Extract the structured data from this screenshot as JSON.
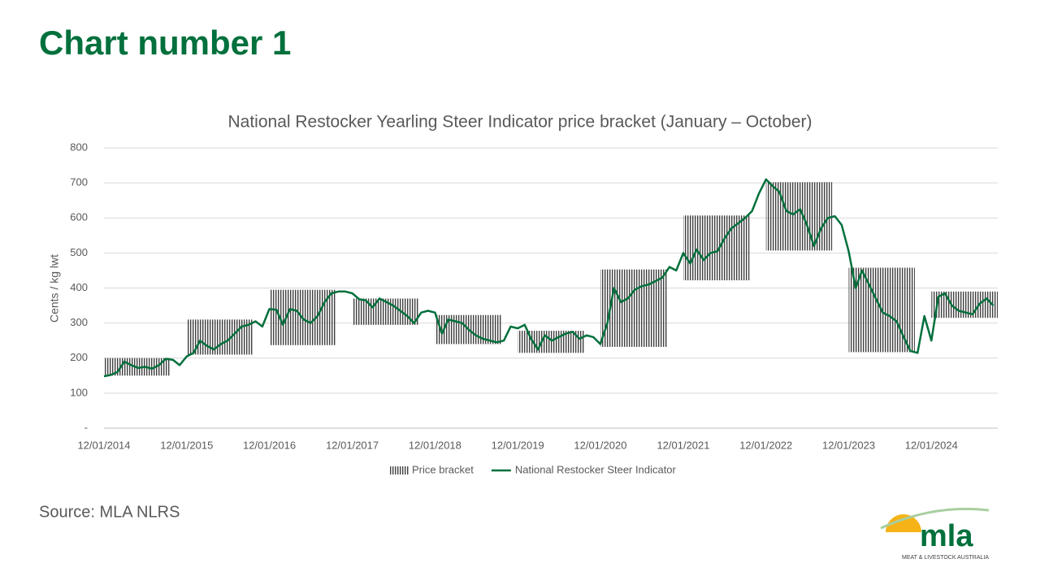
{
  "page_title": "Chart number 1",
  "source": "Source: MLA NLRS",
  "logo": {
    "name": "mla",
    "tagline": "MEAT & LIVESTOCK AUSTRALIA"
  },
  "chart_data": {
    "type": "range_line",
    "title": "National Restocker Yearling Steer Indicator price bracket (January – October)",
    "y_label": "Cents / kg lwt",
    "ylim": [
      0,
      800
    ],
    "yticks": [
      {
        "value": 0,
        "label": "-"
      },
      100,
      200,
      300,
      400,
      500,
      600,
      700,
      800
    ],
    "xlim": [
      "2014-01-12",
      "2024-10-31"
    ],
    "xticks": [
      {
        "value": "2014-01-12",
        "label": "12/01/2014"
      },
      {
        "value": "2015-01-12",
        "label": "12/01/2015"
      },
      {
        "value": "2016-01-12",
        "label": "12/01/2016"
      },
      {
        "value": "2017-01-12",
        "label": "12/01/2017"
      },
      {
        "value": "2018-01-12",
        "label": "12/01/2018"
      },
      {
        "value": "2019-01-12",
        "label": "12/01/2019"
      },
      {
        "value": "2020-01-12",
        "label": "12/01/2020"
      },
      {
        "value": "2021-01-12",
        "label": "12/01/2021"
      },
      {
        "value": "2022-01-12",
        "label": "12/01/2022"
      },
      {
        "value": "2023-01-12",
        "label": "12/01/2023"
      },
      {
        "value": "2024-01-12",
        "label": "12/01/2024"
      }
    ],
    "grid": true,
    "legend": "bottom",
    "series": [
      {
        "name": "Price bracket",
        "type": "range",
        "color": "#404040",
        "x_start": [
          "2014-01-12",
          "2015-01-12",
          "2016-01-12",
          "2017-01-12",
          "2018-01-12",
          "2019-01-12",
          "2020-01-12",
          "2021-01-12",
          "2022-01-12",
          "2023-01-12",
          "2024-01-12"
        ],
        "x_end": [
          "2014-10-31",
          "2015-10-31",
          "2016-10-31",
          "2017-10-31",
          "2018-10-31",
          "2019-10-31",
          "2020-10-31",
          "2021-10-31",
          "2022-10-31",
          "2023-10-31",
          "2024-10-31"
        ],
        "low": [
          150,
          210,
          237,
          295,
          240,
          215,
          232,
          422,
          507,
          217,
          315
        ],
        "high": [
          200,
          310,
          395,
          370,
          323,
          278,
          453,
          607,
          702,
          458,
          390
        ]
      },
      {
        "name": "National Restocker Steer Indicator",
        "type": "line",
        "color": "#00703c",
        "x": [
          "2014-01-12",
          "2014-02-12",
          "2014-03-12",
          "2014-04-12",
          "2014-05-12",
          "2014-06-12",
          "2014-07-12",
          "2014-08-12",
          "2014-09-12",
          "2014-10-12",
          "2014-11-12",
          "2014-12-12",
          "2015-01-12",
          "2015-02-12",
          "2015-03-12",
          "2015-04-12",
          "2015-05-12",
          "2015-06-12",
          "2015-07-12",
          "2015-08-12",
          "2015-09-12",
          "2015-10-12",
          "2015-11-12",
          "2015-12-12",
          "2016-01-12",
          "2016-02-12",
          "2016-03-12",
          "2016-04-12",
          "2016-05-12",
          "2016-06-12",
          "2016-07-12",
          "2016-08-12",
          "2016-09-12",
          "2016-10-12",
          "2016-11-12",
          "2016-12-12",
          "2017-01-12",
          "2017-02-12",
          "2017-03-12",
          "2017-04-12",
          "2017-05-12",
          "2017-06-12",
          "2017-07-12",
          "2017-08-12",
          "2017-09-12",
          "2017-10-12",
          "2017-11-12",
          "2017-12-12",
          "2018-01-12",
          "2018-02-12",
          "2018-03-12",
          "2018-04-12",
          "2018-05-12",
          "2018-06-12",
          "2018-07-12",
          "2018-08-12",
          "2018-09-12",
          "2018-10-12",
          "2018-11-12",
          "2018-12-12",
          "2019-01-12",
          "2019-02-12",
          "2019-03-12",
          "2019-04-12",
          "2019-05-12",
          "2019-06-12",
          "2019-07-12",
          "2019-08-12",
          "2019-09-12",
          "2019-10-12",
          "2019-11-12",
          "2019-12-12",
          "2020-01-12",
          "2020-02-12",
          "2020-03-12",
          "2020-04-12",
          "2020-05-12",
          "2020-06-12",
          "2020-07-12",
          "2020-08-12",
          "2020-09-12",
          "2020-10-12",
          "2020-11-12",
          "2020-12-12",
          "2021-01-12",
          "2021-02-12",
          "2021-03-12",
          "2021-04-12",
          "2021-05-12",
          "2021-06-12",
          "2021-07-12",
          "2021-08-12",
          "2021-09-12",
          "2021-10-12",
          "2021-11-12",
          "2021-12-12",
          "2022-01-12",
          "2022-02-12",
          "2022-03-12",
          "2022-04-12",
          "2022-05-12",
          "2022-06-12",
          "2022-07-12",
          "2022-08-12",
          "2022-09-12",
          "2022-10-12",
          "2022-11-12",
          "2022-12-12",
          "2023-01-12",
          "2023-02-12",
          "2023-03-12",
          "2023-04-12",
          "2023-05-12",
          "2023-06-12",
          "2023-07-12",
          "2023-08-12",
          "2023-09-12",
          "2023-10-12",
          "2023-11-12",
          "2023-12-12",
          "2024-01-12",
          "2024-02-12",
          "2024-03-12",
          "2024-04-12",
          "2024-05-12",
          "2024-06-12",
          "2024-07-12",
          "2024-08-12",
          "2024-09-12",
          "2024-10-12"
        ],
        "values": [
          148,
          152,
          160,
          190,
          180,
          172,
          175,
          170,
          180,
          198,
          195,
          180,
          205,
          215,
          250,
          235,
          225,
          240,
          250,
          270,
          290,
          295,
          305,
          290,
          340,
          338,
          295,
          340,
          335,
          310,
          300,
          320,
          360,
          385,
          390,
          390,
          385,
          368,
          365,
          345,
          370,
          360,
          350,
          335,
          320,
          300,
          330,
          335,
          330,
          270,
          310,
          305,
          300,
          280,
          265,
          255,
          250,
          245,
          250,
          290,
          285,
          295,
          255,
          225,
          265,
          250,
          260,
          270,
          275,
          255,
          265,
          260,
          240,
          300,
          400,
          360,
          370,
          395,
          405,
          410,
          420,
          430,
          460,
          450,
          500,
          470,
          510,
          480,
          500,
          505,
          540,
          570,
          585,
          600,
          620,
          670,
          710,
          690,
          675,
          620,
          610,
          625,
          580,
          520,
          570,
          600,
          605,
          580,
          505,
          400,
          450,
          410,
          370,
          330,
          320,
          305,
          260,
          220,
          215,
          320,
          250,
          375,
          385,
          350,
          335,
          330,
          325,
          355,
          370,
          350
        ]
      }
    ]
  }
}
